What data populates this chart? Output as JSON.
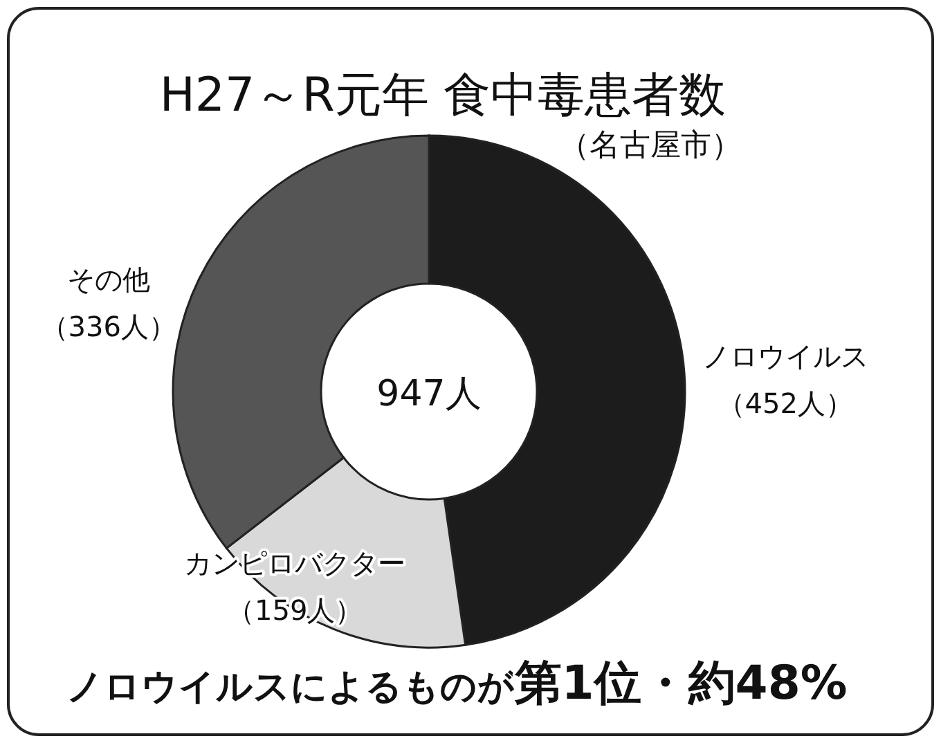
{
  "chart_data": {
    "type": "donut",
    "title": "H27～R元年 食中毒患者数",
    "subtitle": "（名古屋市）",
    "categories": [
      "ノロウイルス",
      "カンピロバクター",
      "その他"
    ],
    "values": [
      452,
      159,
      336
    ],
    "colors": [
      "#1c1c1c",
      "#d9d9d9",
      "#555555"
    ],
    "value_labels": [
      "（452人）",
      "（159人）",
      "（336人）"
    ],
    "annotations": [
      "947人",
      "ノロウイルスによるものが**第1位・約48%**"
    ]
  }
}
